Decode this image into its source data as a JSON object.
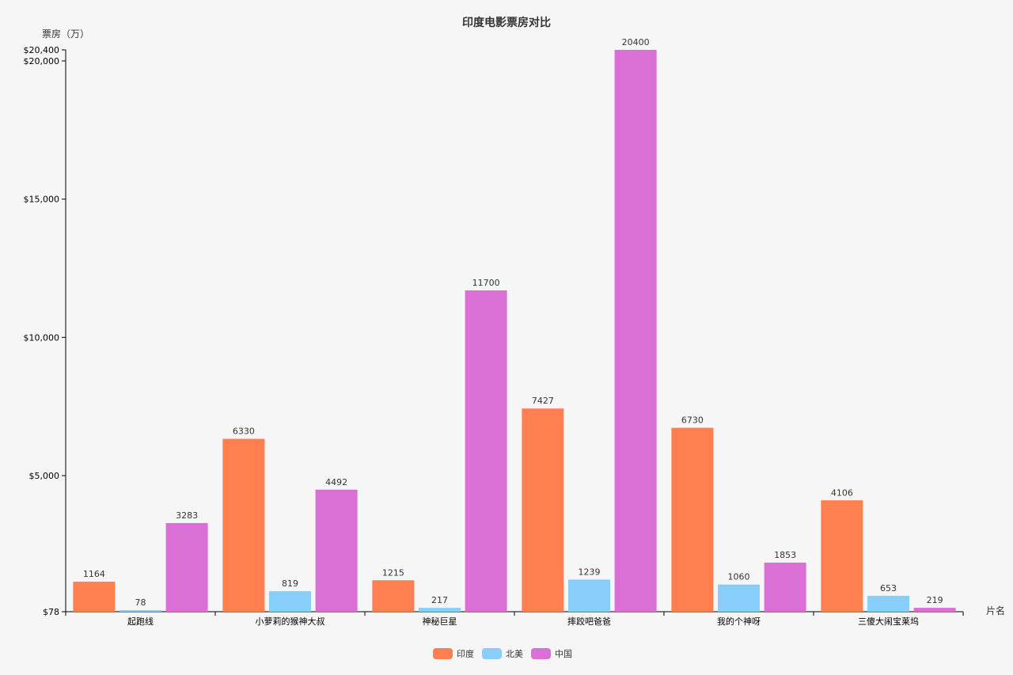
{
  "chart_data": {
    "type": "bar",
    "title": "印度电影票房对比",
    "ylabel": "票房（万）",
    "xlabel": "片名",
    "categories": [
      "起跑线",
      "小萝莉的猴神大叔",
      "神秘巨星",
      "摔跤吧爸爸",
      "我的个神呀",
      "三傻大闹宝莱坞"
    ],
    "series": [
      {
        "name": "印度",
        "color": "#ff7f50",
        "values": [
          1164,
          6330,
          1215,
          7427,
          6730,
          4106
        ]
      },
      {
        "name": "北美",
        "color": "#87cefa",
        "values": [
          78,
          819,
          217,
          1239,
          1060,
          653
        ]
      },
      {
        "name": "中国",
        "color": "#da70d6",
        "values": [
          3283,
          4492,
          11700,
          20400,
          1853,
          219
        ]
      }
    ],
    "ylim": [
      78,
      20400
    ],
    "y_ticks": [
      {
        "value": 78,
        "label": "$78"
      },
      {
        "value": 5000,
        "label": "$5,000"
      },
      {
        "value": 10000,
        "label": "$10,000"
      },
      {
        "value": 15000,
        "label": "$15,000"
      },
      {
        "value": 20000,
        "label": "$20,000"
      },
      {
        "value": 20400,
        "label": "$20,400"
      }
    ],
    "legend_position": "bottom-center",
    "grid": false
  }
}
